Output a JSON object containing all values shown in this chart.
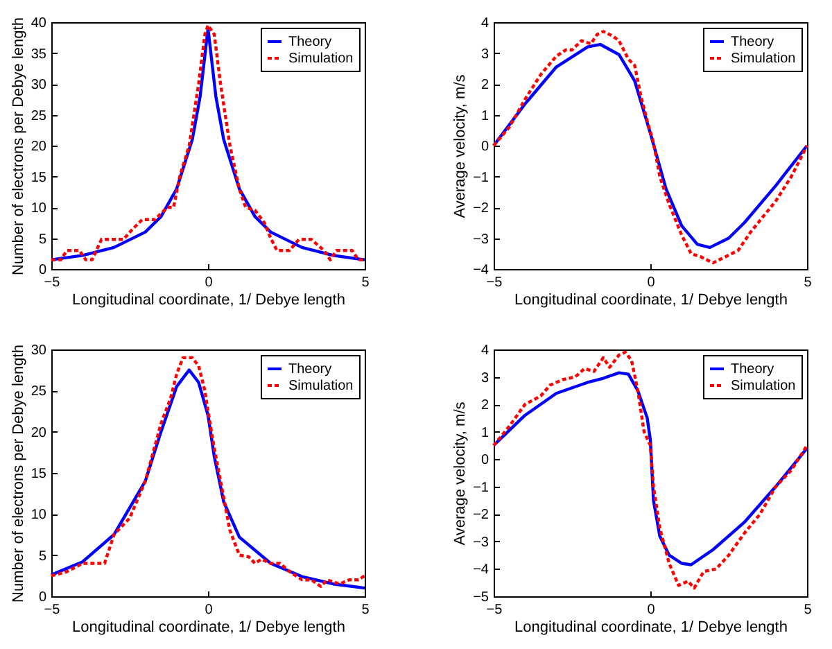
{
  "chart_data": [
    {
      "type": "line",
      "xlabel": "Longitudinal coordinate, 1/ Debye length",
      "ylabel": "Number of electrons per Debye length",
      "xlim": [
        -5,
        5
      ],
      "ylim": [
        0,
        40
      ],
      "xticks": [
        -5,
        0,
        5
      ],
      "yticks": [
        0,
        5,
        10,
        15,
        20,
        25,
        30,
        35,
        40
      ],
      "legend": "top right",
      "series": [
        {
          "name": "Theory",
          "color": "#0000ff",
          "line_style": "solid",
          "x": [
            -5,
            -4,
            -3,
            -2,
            -1.5,
            -1,
            -0.5,
            -0.25,
            0,
            0.25,
            0.5,
            1,
            1.5,
            2,
            3,
            4,
            5
          ],
          "values": [
            1.5,
            2.2,
            3.5,
            6,
            8.5,
            13,
            21,
            28,
            39,
            28,
            21,
            13,
            8.5,
            6,
            3.5,
            2.2,
            1.5
          ]
        },
        {
          "name": "Simulation",
          "color": "#ff0000",
          "line_style": "dotted",
          "x": [
            -5,
            -4.7,
            -4.5,
            -4.1,
            -3.9,
            -3.7,
            -3.4,
            -2.7,
            -2.4,
            -2.1,
            -1.7,
            -1.3,
            -1.1,
            -0.9,
            -0.6,
            -0.3,
            -0.1,
            0,
            0.2,
            0.4,
            0.7,
            1,
            1.2,
            1.5,
            1.8,
            2,
            2.2,
            2.6,
            2.9,
            3.3,
            3.7,
            3.9,
            4.1,
            4.6,
            4.8,
            5
          ],
          "values": [
            1.5,
            1.5,
            3,
            3,
            1.5,
            1.5,
            4.8,
            4.8,
            6.5,
            8,
            8,
            10,
            10,
            15,
            20,
            30,
            38,
            39.5,
            38,
            30,
            20,
            13,
            10,
            9.5,
            7.5,
            5,
            3,
            3,
            4.8,
            4.8,
            3,
            1.5,
            3,
            3,
            1.5,
            1.5
          ]
        }
      ]
    },
    {
      "type": "line",
      "xlabel": "Longitudinal coordinate, 1/ Debye length",
      "ylabel": "Average velocity, m/s",
      "xlim": [
        -5,
        5
      ],
      "ylim": [
        -4,
        4
      ],
      "xticks": [
        -5,
        0,
        5
      ],
      "yticks": [
        -4,
        -3,
        -2,
        -1,
        0,
        1,
        2,
        3,
        4
      ],
      "legend": "top right",
      "series": [
        {
          "name": "Theory",
          "color": "#0000ff",
          "line_style": "solid",
          "x": [
            -5,
            -4,
            -3,
            -2,
            -1.6,
            -1,
            -0.5,
            0,
            0.5,
            1,
            1.5,
            1.9,
            2.5,
            3,
            4,
            5
          ],
          "values": [
            0,
            1.35,
            2.55,
            3.2,
            3.28,
            2.95,
            2.1,
            0.4,
            -1.4,
            -2.6,
            -3.2,
            -3.3,
            -3.0,
            -2.5,
            -1.3,
            0
          ]
        },
        {
          "name": "Simulation",
          "color": "#ff0000",
          "line_style": "dotted",
          "x": [
            -5,
            -4.5,
            -4,
            -3.5,
            -3,
            -2.7,
            -2.5,
            -2.2,
            -1.9,
            -1.7,
            -1.5,
            -1.2,
            -1,
            -0.7,
            -0.5,
            -0.3,
            -0.1,
            0.1,
            0.3,
            0.6,
            1,
            1.3,
            1.6,
            2,
            2.4,
            2.8,
            3.2,
            3.6,
            4,
            4.5,
            5
          ],
          "values": [
            0,
            0.6,
            1.5,
            2.3,
            2.9,
            3.1,
            3.1,
            3.4,
            3.3,
            3.6,
            3.7,
            3.55,
            3.4,
            2.8,
            2.6,
            1.6,
            0.8,
            0.1,
            -1,
            -1.9,
            -2.9,
            -3.5,
            -3.6,
            -3.8,
            -3.6,
            -3.4,
            -2.8,
            -2.3,
            -1.8,
            -1,
            0
          ]
        }
      ]
    },
    {
      "type": "line",
      "xlabel": "Longitudinal coordinate, 1/ Debye length",
      "ylabel": "Number of electrons per Debye length",
      "xlim": [
        -5,
        5
      ],
      "ylim": [
        0,
        30
      ],
      "xticks": [
        -5,
        0,
        5
      ],
      "yticks": [
        0,
        5,
        10,
        15,
        20,
        25,
        30
      ],
      "legend": "top right",
      "series": [
        {
          "name": "Theory",
          "color": "#0000ff",
          "line_style": "solid",
          "x": [
            -5,
            -4,
            -3,
            -2,
            -1.5,
            -1,
            -0.6,
            -0.3,
            0,
            0.2,
            0.5,
            1,
            2,
            3,
            4,
            5
          ],
          "values": [
            2.6,
            4.2,
            7.5,
            14,
            20,
            25.5,
            27.5,
            26,
            22,
            17,
            11.5,
            7.2,
            4,
            2.4,
            1.5,
            1
          ]
        },
        {
          "name": "Simulation",
          "color": "#ff0000",
          "line_style": "dotted",
          "x": [
            -5,
            -4.5,
            -4,
            -3.3,
            -3,
            -2.5,
            -2,
            -1.5,
            -1.2,
            -1,
            -0.8,
            -0.5,
            -0.3,
            -0.1,
            0,
            0.2,
            0.5,
            0.7,
            1,
            1.3,
            1.5,
            1.7,
            2,
            2.3,
            2.6,
            3,
            3.3,
            3.6,
            3.8,
            4.2,
            4.5,
            4.8,
            5
          ],
          "values": [
            2.5,
            3,
            4,
            4,
            7.5,
            9.5,
            14,
            21,
            24,
            27,
            29,
            29,
            28,
            25,
            22.5,
            18,
            12,
            8,
            5,
            4.8,
            4,
            4.5,
            4,
            4,
            3,
            2,
            2,
            1.2,
            2,
            1.5,
            2,
            2,
            2.5
          ]
        }
      ]
    },
    {
      "type": "line",
      "xlabel": "Longitudinal coordinate, 1/ Debye length",
      "ylabel": "Average velocity, m/s",
      "xlim": [
        -5,
        5
      ],
      "ylim": [
        -5,
        4
      ],
      "xticks": [
        -5,
        0,
        5
      ],
      "yticks": [
        -5,
        -4,
        -3,
        -2,
        -1,
        0,
        1,
        2,
        3,
        4
      ],
      "legend": "top right",
      "series": [
        {
          "name": "Theory",
          "color": "#0000ff",
          "line_style": "solid",
          "x": [
            -5,
            -4,
            -3,
            -2,
            -1.5,
            -1,
            -0.7,
            -0.4,
            -0.1,
            0,
            0.1,
            0.3,
            0.6,
            1,
            1.3,
            2,
            3,
            4,
            5
          ],
          "values": [
            0.5,
            1.6,
            2.4,
            2.8,
            2.95,
            3.15,
            3.1,
            2.5,
            1.5,
            0.7,
            -1.5,
            -2.8,
            -3.5,
            -3.8,
            -3.85,
            -3.3,
            -2.3,
            -1,
            0.4
          ]
        },
        {
          "name": "Simulation",
          "color": "#ff0000",
          "line_style": "dotted",
          "x": [
            -5,
            -4.5,
            -4,
            -3.5,
            -3.2,
            -2.8,
            -2.4,
            -2.1,
            -1.8,
            -1.5,
            -1.3,
            -1,
            -0.8,
            -0.6,
            -0.4,
            -0.2,
            0,
            0.1,
            0.3,
            0.6,
            0.9,
            1.2,
            1.4,
            1.7,
            2.1,
            2.5,
            3,
            3.5,
            4,
            4.5,
            5
          ],
          "values": [
            0.5,
            1.2,
            2,
            2.3,
            2.7,
            2.9,
            3,
            3.3,
            3.2,
            3.7,
            3.35,
            3.8,
            3.9,
            3.6,
            2.5,
            1,
            0.5,
            -1,
            -2.5,
            -3.8,
            -4.6,
            -4.45,
            -4.7,
            -4.1,
            -4,
            -3.5,
            -2.7,
            -2,
            -1,
            -0.4,
            0.5
          ]
        }
      ]
    }
  ]
}
